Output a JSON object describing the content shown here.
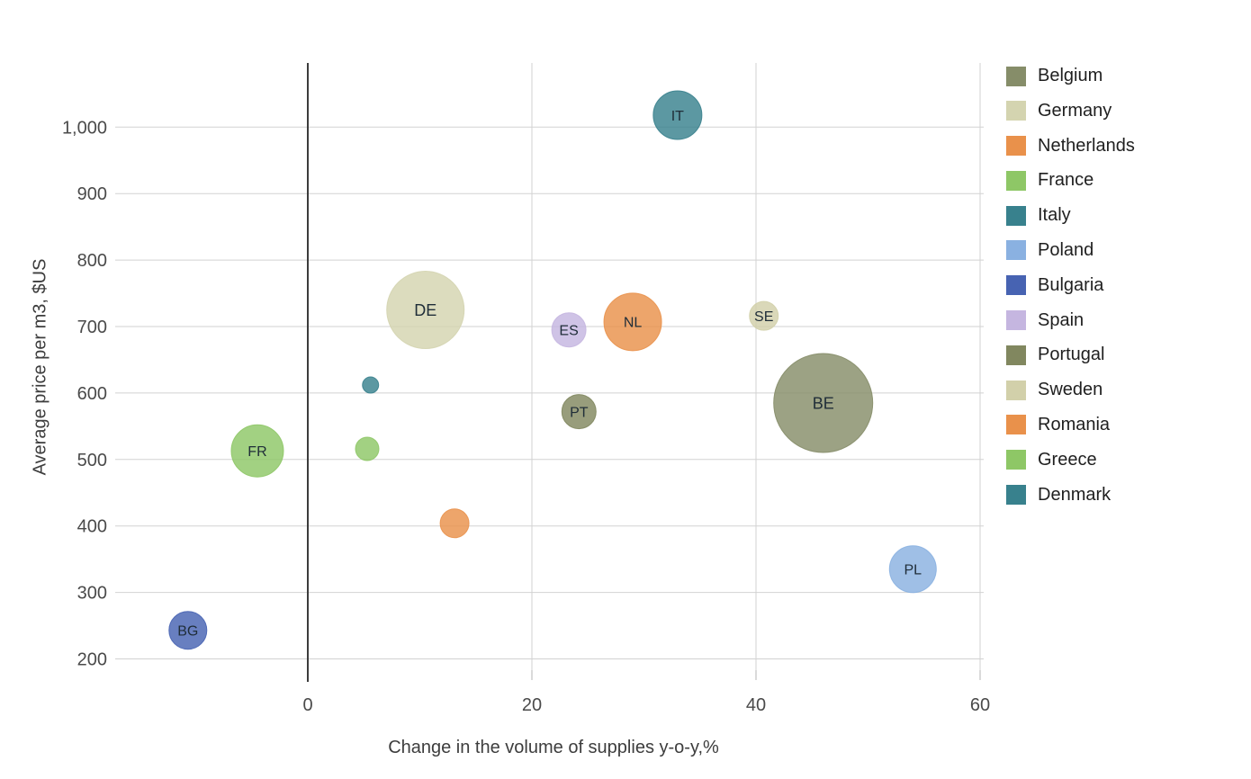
{
  "chart_data": {
    "type": "bubble",
    "title": "",
    "xlabel": "Change in the volume of supplies y-o-y,%",
    "ylabel": "Average price per m3, $US",
    "xlim": [
      -17,
      78
    ],
    "ylim": [
      183,
      1097
    ],
    "grid": true,
    "legend_position": "right",
    "x_ticks": [
      {
        "value": 0,
        "label": "0"
      },
      {
        "value": 20,
        "label": "20"
      },
      {
        "value": 40,
        "label": "40"
      },
      {
        "value": 60,
        "label": "60"
      }
    ],
    "y_ticks": [
      {
        "value": 200,
        "label": "200"
      },
      {
        "value": 300,
        "label": "300"
      },
      {
        "value": 400,
        "label": "400"
      },
      {
        "value": 500,
        "label": "500"
      },
      {
        "value": 600,
        "label": "600"
      },
      {
        "value": 700,
        "label": "700"
      },
      {
        "value": 800,
        "label": "800"
      },
      {
        "value": 900,
        "label": "900"
      },
      {
        "value": 1000,
        "label": "1,000"
      }
    ],
    "series": [
      {
        "country": "Belgium",
        "label": "BE",
        "x": 46,
        "y": 585,
        "r": 55,
        "color": "#868D69"
      },
      {
        "country": "Germany",
        "label": "DE",
        "x": 10.5,
        "y": 725,
        "r": 43,
        "color": "#D4D4B0"
      },
      {
        "country": "Netherlands",
        "label": "NL",
        "x": 29,
        "y": 707,
        "r": 32,
        "color": "#E9914B"
      },
      {
        "country": "France",
        "label": "FR",
        "x": -4.5,
        "y": 513,
        "r": 29,
        "color": "#8EC766"
      },
      {
        "country": "Italy",
        "label": "IT",
        "x": 33,
        "y": 1018,
        "r": 27,
        "color": "#38818D"
      },
      {
        "country": "Poland",
        "label": "PL",
        "x": 54,
        "y": 335,
        "r": 26,
        "color": "#8AB1E1"
      },
      {
        "country": "Bulgaria",
        "label": "BG",
        "x": -10.7,
        "y": 243,
        "r": 21,
        "color": "#4763B2"
      },
      {
        "country": "Spain",
        "label": "ES",
        "x": 23.3,
        "y": 695,
        "r": 19,
        "color": "#C5B6E0"
      },
      {
        "country": "Portugal",
        "label": "PT",
        "x": 24.2,
        "y": 572,
        "r": 19,
        "color": "#81875F"
      },
      {
        "country": "Sweden",
        "label": "SE",
        "x": 40.7,
        "y": 716,
        "r": 16,
        "color": "#D2D0AA"
      },
      {
        "country": "Romania",
        "label": "",
        "x": 13.1,
        "y": 404,
        "r": 16,
        "color": "#E9914B"
      },
      {
        "country": "Greece",
        "label": "",
        "x": 5.3,
        "y": 516,
        "r": 13,
        "color": "#8EC766"
      },
      {
        "country": "Denmark",
        "label": "",
        "x": 5.6,
        "y": 612,
        "r": 9,
        "color": "#38818D"
      }
    ]
  },
  "legend": {
    "items": [
      {
        "label": "Belgium",
        "color": "#868D69"
      },
      {
        "label": "Germany",
        "color": "#D4D4B0"
      },
      {
        "label": "Netherlands",
        "color": "#E9914B"
      },
      {
        "label": "France",
        "color": "#8EC766"
      },
      {
        "label": "Italy",
        "color": "#38818D"
      },
      {
        "label": "Poland",
        "color": "#8AB1E1"
      },
      {
        "label": "Bulgaria",
        "color": "#4763B2"
      },
      {
        "label": "Spain",
        "color": "#C5B6E0"
      },
      {
        "label": "Portugal",
        "color": "#81875F"
      },
      {
        "label": "Sweden",
        "color": "#D2D0AA"
      },
      {
        "label": "Romania",
        "color": "#E9914B"
      },
      {
        "label": "Greece",
        "color": "#8EC766"
      },
      {
        "label": "Denmark",
        "color": "#38818D"
      }
    ]
  },
  "colors": {
    "background": "#ffffff",
    "grid": "#d2d2d2",
    "tick": "#b5b5b5",
    "axis_line": "#3c3c3c",
    "tick_label": "#4a4a4a",
    "axis_title": "#3d3d3d",
    "legend_text": "#1f1f1f",
    "bubble_label": "#1f2d38"
  }
}
